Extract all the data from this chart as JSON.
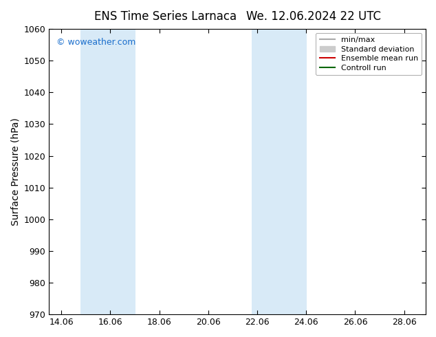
{
  "title_left": "ENS Time Series Larnaca",
  "title_right": "We. 12.06.2024 22 UTC",
  "ylabel": "Surface Pressure (hPa)",
  "ylim": [
    970,
    1060
  ],
  "yticks": [
    970,
    980,
    990,
    1000,
    1010,
    1020,
    1030,
    1040,
    1050,
    1060
  ],
  "xlim": [
    13.56,
    28.94
  ],
  "xtick_positions": [
    14.06,
    16.06,
    18.06,
    20.06,
    22.06,
    24.06,
    26.06,
    28.06
  ],
  "xtick_labels": [
    "14.06",
    "16.06",
    "18.06",
    "20.06",
    "22.06",
    "24.06",
    "26.06",
    "28.06"
  ],
  "shaded_bands": [
    {
      "xmin": 14.83,
      "xmax": 17.09
    },
    {
      "xmin": 21.83,
      "xmax": 24.09
    }
  ],
  "band_color": "#d8eaf7",
  "watermark": "© woweather.com",
  "watermark_color": "#1a6ecc",
  "legend_entries": [
    {
      "label": "min/max",
      "color": "#aaaaaa",
      "lw": 1.5,
      "type": "line"
    },
    {
      "label": "Standard deviation",
      "color": "#cccccc",
      "lw": 8,
      "type": "patch"
    },
    {
      "label": "Ensemble mean run",
      "color": "#cc0000",
      "lw": 1.5,
      "type": "line"
    },
    {
      "label": "Controll run",
      "color": "#006600",
      "lw": 1.5,
      "type": "line"
    }
  ],
  "background_color": "#ffffff",
  "title_fontsize": 12,
  "axis_label_fontsize": 10,
  "tick_fontsize": 9,
  "legend_fontsize": 8
}
